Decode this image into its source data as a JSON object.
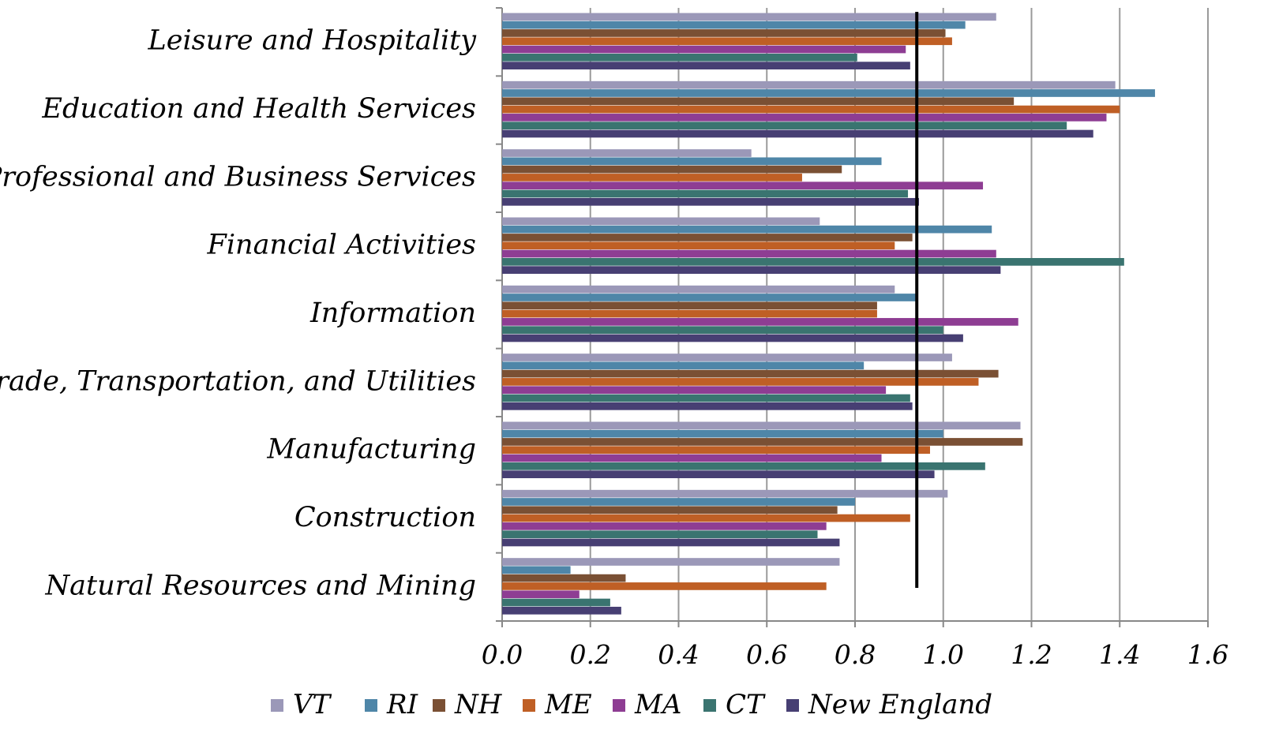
{
  "chart_data": {
    "type": "barh",
    "categories": [
      "Leisure and Hospitality",
      "Education and Health Services",
      "Professional and Business Services",
      "Financial Activities",
      "Information",
      "Trade, Transportation, and Utilities",
      "Manufacturing",
      "Construction",
      "Natural Resources and Mining"
    ],
    "series": [
      {
        "name": "VT",
        "color": "#9b98b8",
        "values": [
          1.12,
          1.39,
          0.565,
          0.72,
          0.89,
          1.02,
          1.175,
          1.01,
          0.765
        ]
      },
      {
        "name": "RI",
        "color": "#4f86a8",
        "values": [
          1.05,
          1.48,
          0.86,
          1.11,
          0.94,
          0.82,
          1.0,
          0.8,
          0.155
        ]
      },
      {
        "name": "NH",
        "color": "#7a5034",
        "values": [
          1.005,
          1.16,
          0.77,
          0.93,
          0.85,
          1.125,
          1.18,
          0.76,
          0.28
        ]
      },
      {
        "name": "ME",
        "color": "#bf5f25",
        "values": [
          1.02,
          1.4,
          0.68,
          0.89,
          0.85,
          1.08,
          0.97,
          0.925,
          0.735
        ]
      },
      {
        "name": "MA",
        "color": "#8e3d93",
        "values": [
          0.915,
          1.37,
          1.09,
          1.12,
          1.17,
          0.87,
          0.86,
          0.735,
          0.175
        ]
      },
      {
        "name": "CT",
        "color": "#3a7470",
        "values": [
          0.805,
          1.28,
          0.92,
          1.41,
          1.0,
          0.925,
          1.095,
          0.715,
          0.245
        ]
      },
      {
        "name": "New England",
        "color": "#473f73",
        "values": [
          0.925,
          1.34,
          0.945,
          1.13,
          1.045,
          0.93,
          0.98,
          0.765,
          0.27
        ]
      }
    ],
    "reference_value": 0.94,
    "xlim": [
      0,
      1.6
    ],
    "xticks": [
      {
        "value": 0,
        "label": "0.0"
      },
      0.2,
      0.4,
      0.6,
      0.8,
      {
        "value": 1,
        "label": "1.0"
      },
      1.2,
      1.4,
      1.6
    ],
    "grid": true
  }
}
